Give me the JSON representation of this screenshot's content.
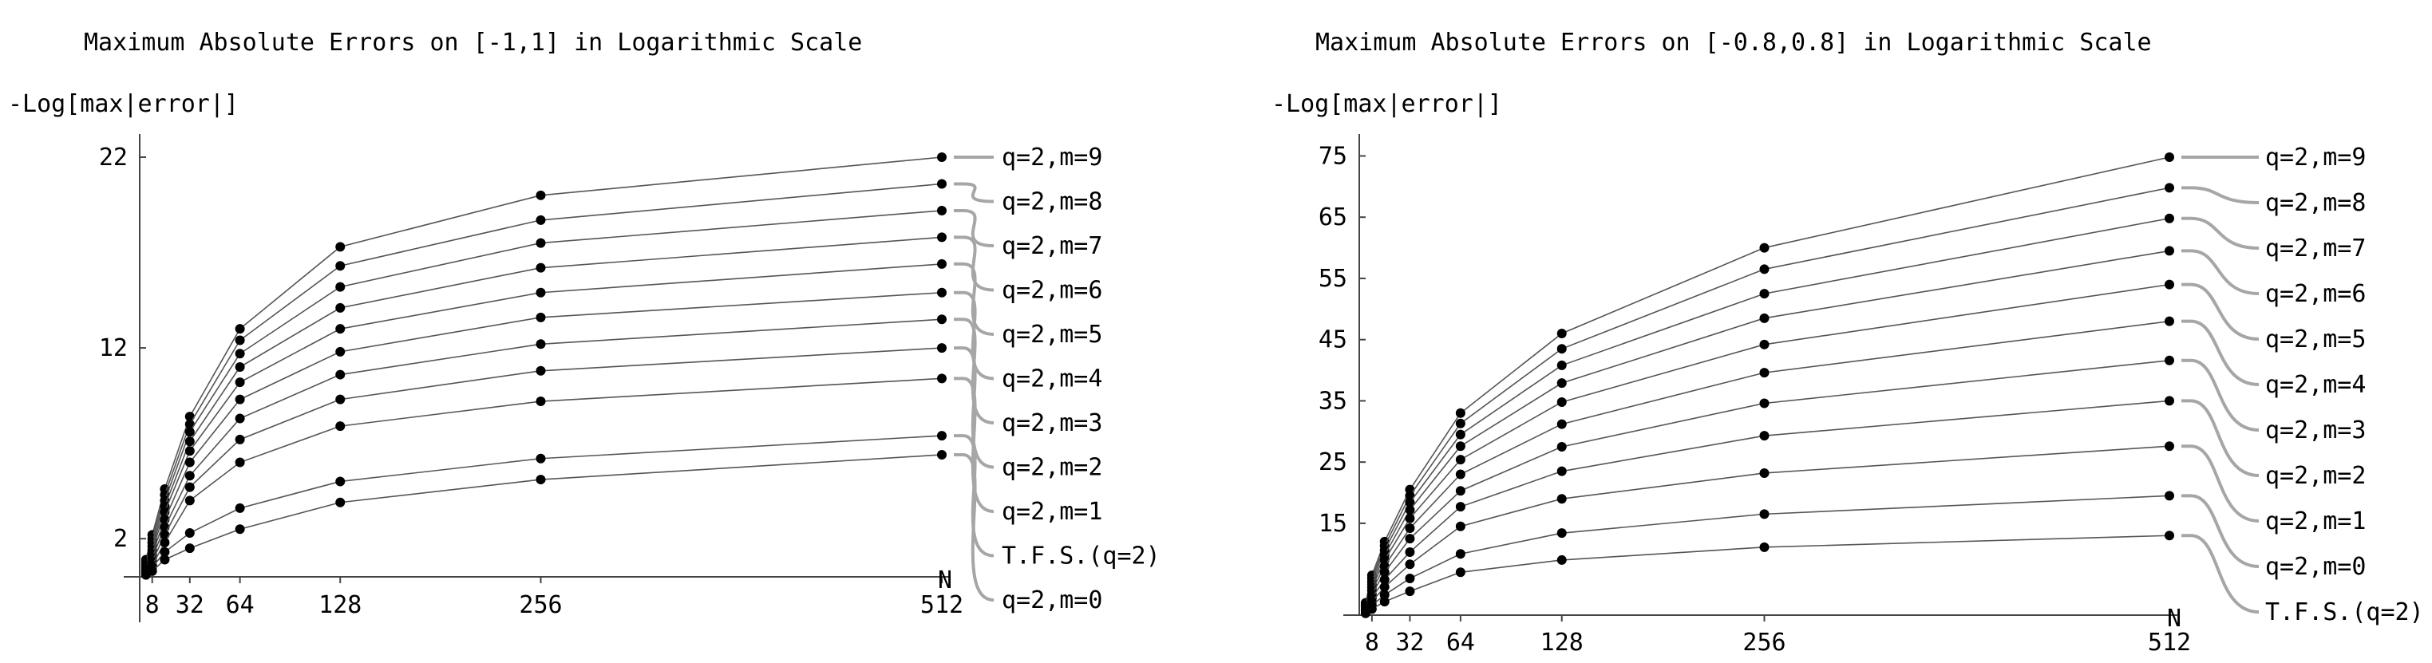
{
  "chart_data": [
    {
      "type": "line",
      "title": "Maximum Absolute Errors on [-1,1] in Logarithmic Scale",
      "ylabel": "-Log[max|error|]",
      "xlabel": "N",
      "x": [
        4,
        8,
        16,
        32,
        64,
        128,
        256,
        512
      ],
      "x_ticks": [
        {
          "value": 8,
          "label": "8"
        },
        {
          "value": 32,
          "label": "32"
        },
        {
          "value": 64,
          "label": "64"
        },
        {
          "value": 128,
          "label": "128"
        },
        {
          "value": 256,
          "label": "256"
        },
        {
          "value": 512,
          "label": "512"
        }
      ],
      "y_ticks": [
        2,
        12,
        22
      ],
      "ylim": [
        0,
        22.5
      ],
      "series": [
        {
          "name": "q=2,m=9",
          "values": [
            0.9,
            2.2,
            4.6,
            8.4,
            13.0,
            17.3,
            20.0,
            22.0
          ]
        },
        {
          "name": "q=2,m=8",
          "values": [
            0.8,
            2.0,
            4.3,
            8.0,
            12.4,
            16.3,
            18.7,
            20.6
          ]
        },
        {
          "name": "q=2,m=7",
          "values": [
            0.7,
            1.8,
            4.0,
            7.6,
            11.7,
            15.2,
            17.5,
            19.2
          ]
        },
        {
          "name": "q=2,m=6",
          "values": [
            0.6,
            1.6,
            3.7,
            7.1,
            11.0,
            14.1,
            16.2,
            17.8
          ]
        },
        {
          "name": "q=2,m=5",
          "values": [
            0.5,
            1.4,
            3.4,
            6.6,
            10.2,
            13.0,
            14.9,
            16.4
          ]
        },
        {
          "name": "q=2,m=4",
          "values": [
            0.4,
            1.2,
            3.0,
            6.0,
            9.3,
            11.8,
            13.6,
            14.9
          ]
        },
        {
          "name": "q=2,m=3",
          "values": [
            0.35,
            1.0,
            2.6,
            5.3,
            8.3,
            10.6,
            12.2,
            13.5
          ]
        },
        {
          "name": "q=2,m=2",
          "values": [
            0.3,
            0.8,
            2.2,
            4.7,
            7.2,
            9.3,
            10.8,
            12.0
          ]
        },
        {
          "name": "q=2,m=1",
          "values": [
            0.25,
            0.6,
            1.8,
            4.0,
            6.0,
            7.9,
            9.2,
            10.4
          ]
        },
        {
          "name": "T.F.S.(q=2)",
          "values": [
            0.2,
            0.5,
            1.3,
            2.3,
            3.6,
            5.0,
            6.2,
            7.4
          ]
        },
        {
          "name": "q=2,m=0",
          "values": [
            0.1,
            0.3,
            0.9,
            1.5,
            2.5,
            3.9,
            5.1,
            6.4
          ]
        }
      ]
    },
    {
      "type": "line",
      "title": "Maximum Absolute Errors on [-0.8,0.8] in Logarithmic Scale",
      "ylabel": "-Log[max|error|]",
      "xlabel": "N",
      "x": [
        4,
        8,
        16,
        32,
        64,
        128,
        256,
        512
      ],
      "x_ticks": [
        {
          "value": 8,
          "label": "8"
        },
        {
          "value": 32,
          "label": "32"
        },
        {
          "value": 64,
          "label": "64"
        },
        {
          "value": 128,
          "label": "128"
        },
        {
          "value": 256,
          "label": "256"
        },
        {
          "value": 512,
          "label": "512"
        }
      ],
      "y_ticks": [
        15,
        25,
        35,
        45,
        55,
        65,
        75
      ],
      "ylim": [
        0,
        77
      ],
      "series": [
        {
          "name": "q=2,m=9",
          "values": [
            2.0,
            6.5,
            12.0,
            20.5,
            33.0,
            46.0,
            60.0,
            74.8
          ]
        },
        {
          "name": "q=2,m=8",
          "values": [
            1.9,
            6.0,
            11.3,
            19.5,
            31.3,
            43.5,
            56.5,
            69.8
          ]
        },
        {
          "name": "q=2,m=7",
          "values": [
            1.8,
            5.5,
            10.6,
            18.4,
            29.5,
            40.8,
            52.5,
            64.8
          ]
        },
        {
          "name": "q=2,m=6",
          "values": [
            1.6,
            5.0,
            9.8,
            17.2,
            27.6,
            37.9,
            48.5,
            59.5
          ]
        },
        {
          "name": "q=2,m=5",
          "values": [
            1.5,
            4.5,
            9.0,
            15.8,
            25.4,
            34.8,
            44.2,
            54.0
          ]
        },
        {
          "name": "q=2,m=4",
          "values": [
            1.3,
            4.0,
            8.0,
            14.2,
            23.0,
            31.2,
            39.6,
            48.0
          ]
        },
        {
          "name": "q=2,m=3",
          "values": [
            1.1,
            3.4,
            7.0,
            12.5,
            20.3,
            27.5,
            34.6,
            41.6
          ]
        },
        {
          "name": "q=2,m=2",
          "values": [
            0.9,
            2.8,
            5.8,
            10.3,
            17.7,
            23.5,
            29.3,
            35.0
          ]
        },
        {
          "name": "q=2,m=1",
          "values": [
            0.7,
            2.2,
            4.6,
            8.3,
            14.5,
            19.0,
            23.2,
            27.6
          ]
        },
        {
          "name": "q=2,m=0",
          "values": [
            0.5,
            1.6,
            3.3,
            6.0,
            10.0,
            13.4,
            16.5,
            19.5
          ]
        },
        {
          "name": "T.F.S.(q=2)",
          "values": [
            0.3,
            1.0,
            2.2,
            3.9,
            7.0,
            9.0,
            11.1,
            13.0
          ]
        }
      ]
    }
  ]
}
